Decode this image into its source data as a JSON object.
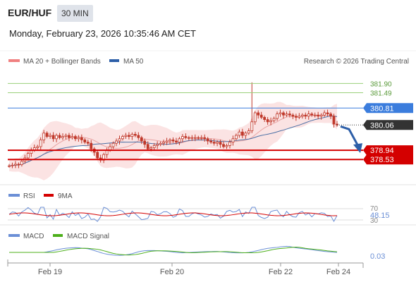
{
  "header": {
    "pair": "EUR/HUF",
    "timeframe": "30 MIN",
    "datetime": "Monday, February 23, 2026 10:35:46 AM CET"
  },
  "main_legend": {
    "ma20": "MA 20 + Bollinger Bands",
    "ma50": "MA 50",
    "credit": "Research © 2026 Trading Central"
  },
  "rsi_legend": {
    "rsi": "RSI",
    "ma9": "9MA"
  },
  "macd_legend": {
    "macd": "MACD",
    "signal": "MACD Signal"
  },
  "colors": {
    "candle": "#c0392b",
    "bollinger_fill": "#f9d7d7",
    "ma20": "#e8a3a3",
    "ma50": "#4a6fa5",
    "resistance_green": "#9ad07a",
    "line_blue": "#3b7ddd",
    "support_red": "#d40000",
    "current_label": "#333333",
    "forecast_arrow": "#2d5fa8",
    "rsi": "#6b8fd6",
    "rsi_ma": "#d40000",
    "macd": "#6b8fd6",
    "macd_signal": "#4caf1a"
  },
  "chart_data": {
    "type": "candlestick",
    "x_ticks": [
      "Feb 19",
      "Feb 20",
      "Feb 22",
      "Feb 24"
    ],
    "y_ylim": [
      377.6,
      382.6
    ],
    "levels": [
      {
        "value": 381.9,
        "label": "381.90",
        "kind": "resistance"
      },
      {
        "value": 381.49,
        "label": "381.49",
        "kind": "resistance"
      },
      {
        "value": 380.81,
        "label": "380.81",
        "kind": "pivot"
      },
      {
        "value": 380.06,
        "label": "380.06",
        "kind": "current"
      },
      {
        "value": 378.94,
        "label": "378.94",
        "kind": "support"
      },
      {
        "value": 378.53,
        "label": "378.53",
        "kind": "support"
      }
    ],
    "closes": [
      378.25,
      378.28,
      378.32,
      378.3,
      378.45,
      378.6,
      378.8,
      378.95,
      379.05,
      379.1,
      379.4,
      379.7,
      379.55,
      379.6,
      379.45,
      379.6,
      379.5,
      379.55,
      379.6,
      379.5,
      379.55,
      379.45,
      379.5,
      379.4,
      379.3,
      379.25,
      379.0,
      378.85,
      378.6,
      378.5,
      378.75,
      378.95,
      379.1,
      379.25,
      379.35,
      379.45,
      379.55,
      379.6,
      379.55,
      379.65,
      379.6,
      379.5,
      379.35,
      379.2,
      379.0,
      379.05,
      379.15,
      379.2,
      379.25,
      379.3,
      379.35,
      379.4,
      379.35,
      379.3,
      379.45,
      379.55,
      379.5,
      379.48,
      379.5,
      379.5,
      379.48,
      379.5,
      379.45,
      379.35,
      379.3,
      379.25,
      379.3,
      379.2,
      379.1,
      379.15,
      379.3,
      379.45,
      379.6,
      379.75,
      379.6,
      379.7,
      379.8,
      380.2,
      380.6,
      380.5,
      380.4,
      380.3,
      380.2,
      380.25,
      380.35,
      380.55,
      380.6,
      380.5,
      380.55,
      380.5,
      380.45,
      380.4,
      380.45,
      380.5,
      380.45,
      380.55,
      380.5,
      380.5,
      380.45,
      380.5,
      380.6,
      380.55,
      380.45,
      380.1,
      380.06
    ],
    "forecast": {
      "from": 380.06,
      "to": 378.94
    },
    "rsi": {
      "levels": [
        70,
        30
      ],
      "value_label": "48.15",
      "level_labels": [
        "70",
        "30"
      ]
    },
    "macd": {
      "value_label": "0.03"
    }
  }
}
